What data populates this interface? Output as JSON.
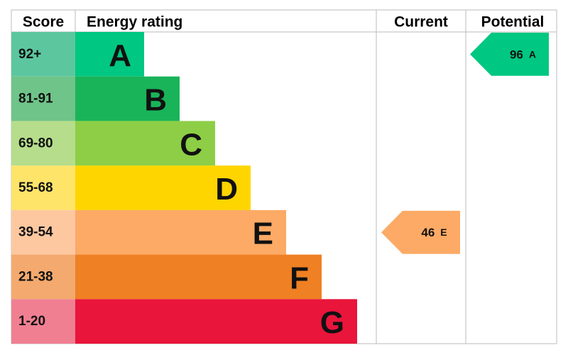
{
  "header": {
    "score": "Score",
    "energy_rating": "Energy rating",
    "current": "Current",
    "potential": "Potential"
  },
  "bands": [
    {
      "score": "92+",
      "rating": "A",
      "color": "#00c781",
      "score_color": "#5cc79f"
    },
    {
      "score": "81-91",
      "rating": "B",
      "color": "#19b459",
      "score_color": "#6fc489"
    },
    {
      "score": "69-80",
      "rating": "C",
      "color": "#8dce46",
      "score_color": "#b5dd8b"
    },
    {
      "score": "55-68",
      "rating": "D",
      "color": "#ffd500",
      "score_color": "#ffe46a"
    },
    {
      "score": "39-54",
      "rating": "E",
      "color": "#fcaa65",
      "score_color": "#fdc8a0"
    },
    {
      "score": "21-38",
      "rating": "F",
      "color": "#ef8023",
      "score_color": "#f4a96e"
    },
    {
      "score": "1-20",
      "rating": "G",
      "color": "#e9153b",
      "score_color": "#f07f92"
    }
  ],
  "current": {
    "value": 46,
    "rating": "E"
  },
  "potential": {
    "value": 96,
    "rating": "A"
  }
}
